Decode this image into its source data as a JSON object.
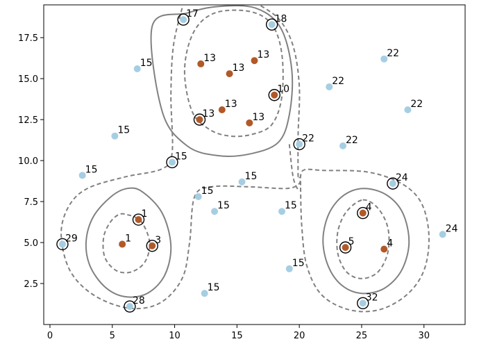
{
  "chart_data": {
    "type": "scatter",
    "title": "",
    "xlabel": "",
    "ylabel": "",
    "xlim": [
      -0.5,
      33.3
    ],
    "ylim": [
      0.0,
      19.5
    ],
    "xticks": [
      0,
      5,
      10,
      15,
      20,
      25,
      30
    ],
    "yticks": [
      2.5,
      5.0,
      7.5,
      10.0,
      12.5,
      15.0,
      17.5
    ],
    "xtick_labels": [
      "0",
      "5",
      "10",
      "15",
      "20",
      "25",
      "30"
    ],
    "ytick_labels": [
      "2.5",
      "5.0",
      "7.5",
      "10.0",
      "12.5",
      "15.0",
      "17.5"
    ],
    "grid": false,
    "colors": {
      "unlabeled": "#a6cee3",
      "labeled": "#b15928",
      "highlight_ring": "#000000",
      "contour": "#808080"
    },
    "points": [
      {
        "x": 5.8,
        "y": 4.9,
        "label": "1",
        "group": "labeled",
        "ringed": false
      },
      {
        "x": 7.1,
        "y": 6.4,
        "label": "1",
        "group": "labeled",
        "ringed": true
      },
      {
        "x": 8.2,
        "y": 4.8,
        "label": "3",
        "group": "labeled",
        "ringed": true
      },
      {
        "x": 12.1,
        "y": 15.9,
        "label": "13",
        "group": "labeled",
        "ringed": false
      },
      {
        "x": 14.4,
        "y": 15.3,
        "label": "13",
        "group": "labeled",
        "ringed": false
      },
      {
        "x": 16.4,
        "y": 16.1,
        "label": "13",
        "group": "labeled",
        "ringed": false
      },
      {
        "x": 13.8,
        "y": 13.1,
        "label": "13",
        "group": "labeled",
        "ringed": false
      },
      {
        "x": 16.0,
        "y": 12.3,
        "label": "13",
        "group": "labeled",
        "ringed": false
      },
      {
        "x": 12.0,
        "y": 12.5,
        "label": "13",
        "group": "labeled",
        "ringed": true
      },
      {
        "x": 18.0,
        "y": 14.0,
        "label": "10",
        "group": "labeled",
        "ringed": true
      },
      {
        "x": 25.1,
        "y": 6.8,
        "label": "4",
        "group": "labeled",
        "ringed": true
      },
      {
        "x": 26.8,
        "y": 4.6,
        "label": "4",
        "group": "labeled",
        "ringed": false
      },
      {
        "x": 23.7,
        "y": 4.7,
        "label": "5",
        "group": "labeled",
        "ringed": true
      },
      {
        "x": 10.7,
        "y": 18.6,
        "label": "17",
        "group": "unlabeled",
        "ringed": true
      },
      {
        "x": 17.8,
        "y": 18.3,
        "label": "18",
        "group": "unlabeled",
        "ringed": true
      },
      {
        "x": 7.0,
        "y": 15.6,
        "label": "15",
        "group": "unlabeled",
        "ringed": false
      },
      {
        "x": 5.2,
        "y": 11.5,
        "label": "15",
        "group": "unlabeled",
        "ringed": false
      },
      {
        "x": 2.6,
        "y": 9.1,
        "label": "15",
        "group": "unlabeled",
        "ringed": false
      },
      {
        "x": 9.8,
        "y": 9.9,
        "label": "15",
        "group": "unlabeled",
        "ringed": true
      },
      {
        "x": 11.9,
        "y": 7.8,
        "label": "15",
        "group": "unlabeled",
        "ringed": false
      },
      {
        "x": 13.2,
        "y": 6.9,
        "label": "15",
        "group": "unlabeled",
        "ringed": false
      },
      {
        "x": 15.4,
        "y": 8.7,
        "label": "15",
        "group": "unlabeled",
        "ringed": false
      },
      {
        "x": 18.6,
        "y": 6.9,
        "label": "15",
        "group": "unlabeled",
        "ringed": false
      },
      {
        "x": 19.2,
        "y": 3.4,
        "label": "15",
        "group": "unlabeled",
        "ringed": false
      },
      {
        "x": 12.4,
        "y": 1.9,
        "label": "15",
        "group": "unlabeled",
        "ringed": false
      },
      {
        "x": 20.0,
        "y": 11.0,
        "label": "22",
        "group": "unlabeled",
        "ringed": true
      },
      {
        "x": 22.4,
        "y": 14.5,
        "label": "22",
        "group": "unlabeled",
        "ringed": false
      },
      {
        "x": 26.8,
        "y": 16.2,
        "label": "22",
        "group": "unlabeled",
        "ringed": false
      },
      {
        "x": 28.7,
        "y": 13.1,
        "label": "22",
        "group": "unlabeled",
        "ringed": false
      },
      {
        "x": 23.5,
        "y": 10.9,
        "label": "22",
        "group": "unlabeled",
        "ringed": false
      },
      {
        "x": 27.5,
        "y": 8.6,
        "label": "24",
        "group": "unlabeled",
        "ringed": true
      },
      {
        "x": 31.5,
        "y": 5.5,
        "label": "24",
        "group": "unlabeled",
        "ringed": false
      },
      {
        "x": 1.0,
        "y": 4.9,
        "label": "29",
        "group": "unlabeled",
        "ringed": true
      },
      {
        "x": 6.4,
        "y": 1.1,
        "label": "28",
        "group": "unlabeled",
        "ringed": true
      },
      {
        "x": 25.1,
        "y": 1.3,
        "label": "32",
        "group": "unlabeled",
        "ringed": true
      }
    ],
    "contours": [
      {
        "style": "solid",
        "points": [
          [
            8.2,
            18.2
          ],
          [
            9.0,
            13.0
          ],
          [
            11.0,
            10.9
          ],
          [
            13.5,
            10.3
          ],
          [
            16.0,
            10.4
          ],
          [
            18.3,
            11.1
          ],
          [
            19.2,
            12.8
          ],
          [
            19.4,
            15.5
          ],
          [
            18.5,
            18.1
          ],
          [
            16.5,
            19.3
          ],
          [
            13.5,
            19.4
          ],
          [
            11.0,
            19.0
          ]
        ]
      },
      {
        "style": "dashed",
        "points": [
          [
            10.8,
            15.5
          ],
          [
            11.4,
            13.0
          ],
          [
            12.8,
            11.9
          ],
          [
            14.4,
            11.5
          ],
          [
            16.2,
            11.6
          ],
          [
            17.8,
            12.2
          ],
          [
            18.6,
            13.9
          ],
          [
            18.6,
            16.5
          ],
          [
            17.8,
            18.3
          ],
          [
            16.0,
            19.1
          ],
          [
            13.2,
            19.0
          ],
          [
            11.5,
            17.8
          ]
        ]
      },
      {
        "style": "solid",
        "points": [
          [
            7.4,
            8.1
          ],
          [
            9.0,
            6.8
          ],
          [
            9.7,
            4.8
          ],
          [
            9.2,
            3.0
          ],
          [
            7.8,
            1.9
          ],
          [
            6.0,
            1.7
          ],
          [
            4.4,
            2.3
          ],
          [
            3.2,
            3.6
          ],
          [
            2.9,
            5.1
          ],
          [
            3.5,
            6.6
          ],
          [
            4.9,
            7.8
          ],
          [
            6.2,
            8.3
          ]
        ]
      },
      {
        "style": "dashed",
        "points": [
          [
            6.2,
            6.7
          ],
          [
            7.3,
            6.3
          ],
          [
            8.0,
            5.0
          ],
          [
            7.6,
            3.8
          ],
          [
            6.5,
            3.2
          ],
          [
            5.3,
            3.3
          ],
          [
            4.4,
            4.1
          ],
          [
            4.3,
            5.3
          ],
          [
            4.8,
            6.2
          ],
          [
            5.5,
            6.7
          ]
        ]
      },
      {
        "style": "solid",
        "points": [
          [
            25.2,
            8.3
          ],
          [
            27.0,
            7.9
          ],
          [
            28.3,
            6.8
          ],
          [
            28.8,
            5.0
          ],
          [
            28.2,
            3.3
          ],
          [
            26.8,
            2.2
          ],
          [
            25.0,
            1.9
          ],
          [
            23.4,
            2.4
          ],
          [
            22.3,
            3.6
          ],
          [
            21.9,
            5.2
          ],
          [
            22.4,
            6.8
          ],
          [
            23.6,
            7.9
          ]
        ]
      },
      {
        "style": "dashed",
        "points": [
          [
            25.1,
            7.6
          ],
          [
            26.3,
            7.1
          ],
          [
            27.1,
            5.9
          ],
          [
            27.1,
            4.4
          ],
          [
            26.3,
            3.2
          ],
          [
            25.0,
            2.8
          ],
          [
            23.8,
            3.2
          ],
          [
            23.1,
            4.3
          ],
          [
            23.1,
            5.7
          ],
          [
            23.8,
            6.9
          ]
        ]
      },
      {
        "style": "dashed",
        "open": true,
        "points": [
          [
            19.9,
            9.0
          ],
          [
            19.9,
            11.5
          ],
          [
            20.0,
            14.5
          ],
          [
            19.5,
            17.0
          ],
          [
            18.4,
            18.6
          ],
          [
            16.8,
            19.5
          ]
        ]
      },
      {
        "style": "dashed",
        "open": true,
        "points": [
          [
            10.6,
            19.3
          ],
          [
            9.9,
            17.0
          ],
          [
            9.7,
            14.0
          ],
          [
            9.8,
            10.5
          ],
          [
            9.0,
            9.5
          ],
          [
            6.0,
            9.0
          ],
          [
            3.0,
            8.3
          ],
          [
            1.5,
            7.2
          ],
          [
            0.9,
            5.5
          ],
          [
            1.6,
            3.3
          ],
          [
            3.5,
            1.8
          ],
          [
            6.3,
            1.0
          ],
          [
            8.8,
            1.3
          ],
          [
            10.6,
            2.8
          ],
          [
            11.2,
            5.0
          ],
          [
            11.6,
            7.8
          ],
          [
            13.0,
            8.4
          ],
          [
            16.0,
            8.4
          ],
          [
            19.0,
            8.3
          ],
          [
            20.0,
            8.6
          ],
          [
            20.0,
            9.0
          ]
        ]
      },
      {
        "style": "dashed",
        "open": true,
        "points": [
          [
            19.2,
            11.0
          ],
          [
            19.5,
            9.0
          ],
          [
            19.9,
            8.2
          ]
        ]
      },
      {
        "style": "dashed",
        "open": true,
        "points": [
          [
            20.1,
            8.5
          ],
          [
            20.3,
            9.4
          ],
          [
            22.0,
            9.4
          ],
          [
            25.5,
            9.3
          ],
          [
            28.2,
            8.6
          ],
          [
            29.8,
            7.4
          ],
          [
            30.4,
            5.4
          ],
          [
            30.0,
            3.3
          ],
          [
            28.6,
            1.8
          ],
          [
            26.4,
            0.9
          ],
          [
            24.0,
            0.9
          ],
          [
            21.8,
            1.8
          ],
          [
            20.6,
            3.6
          ],
          [
            20.2,
            6.0
          ],
          [
            20.1,
            8.5
          ]
        ]
      }
    ]
  }
}
